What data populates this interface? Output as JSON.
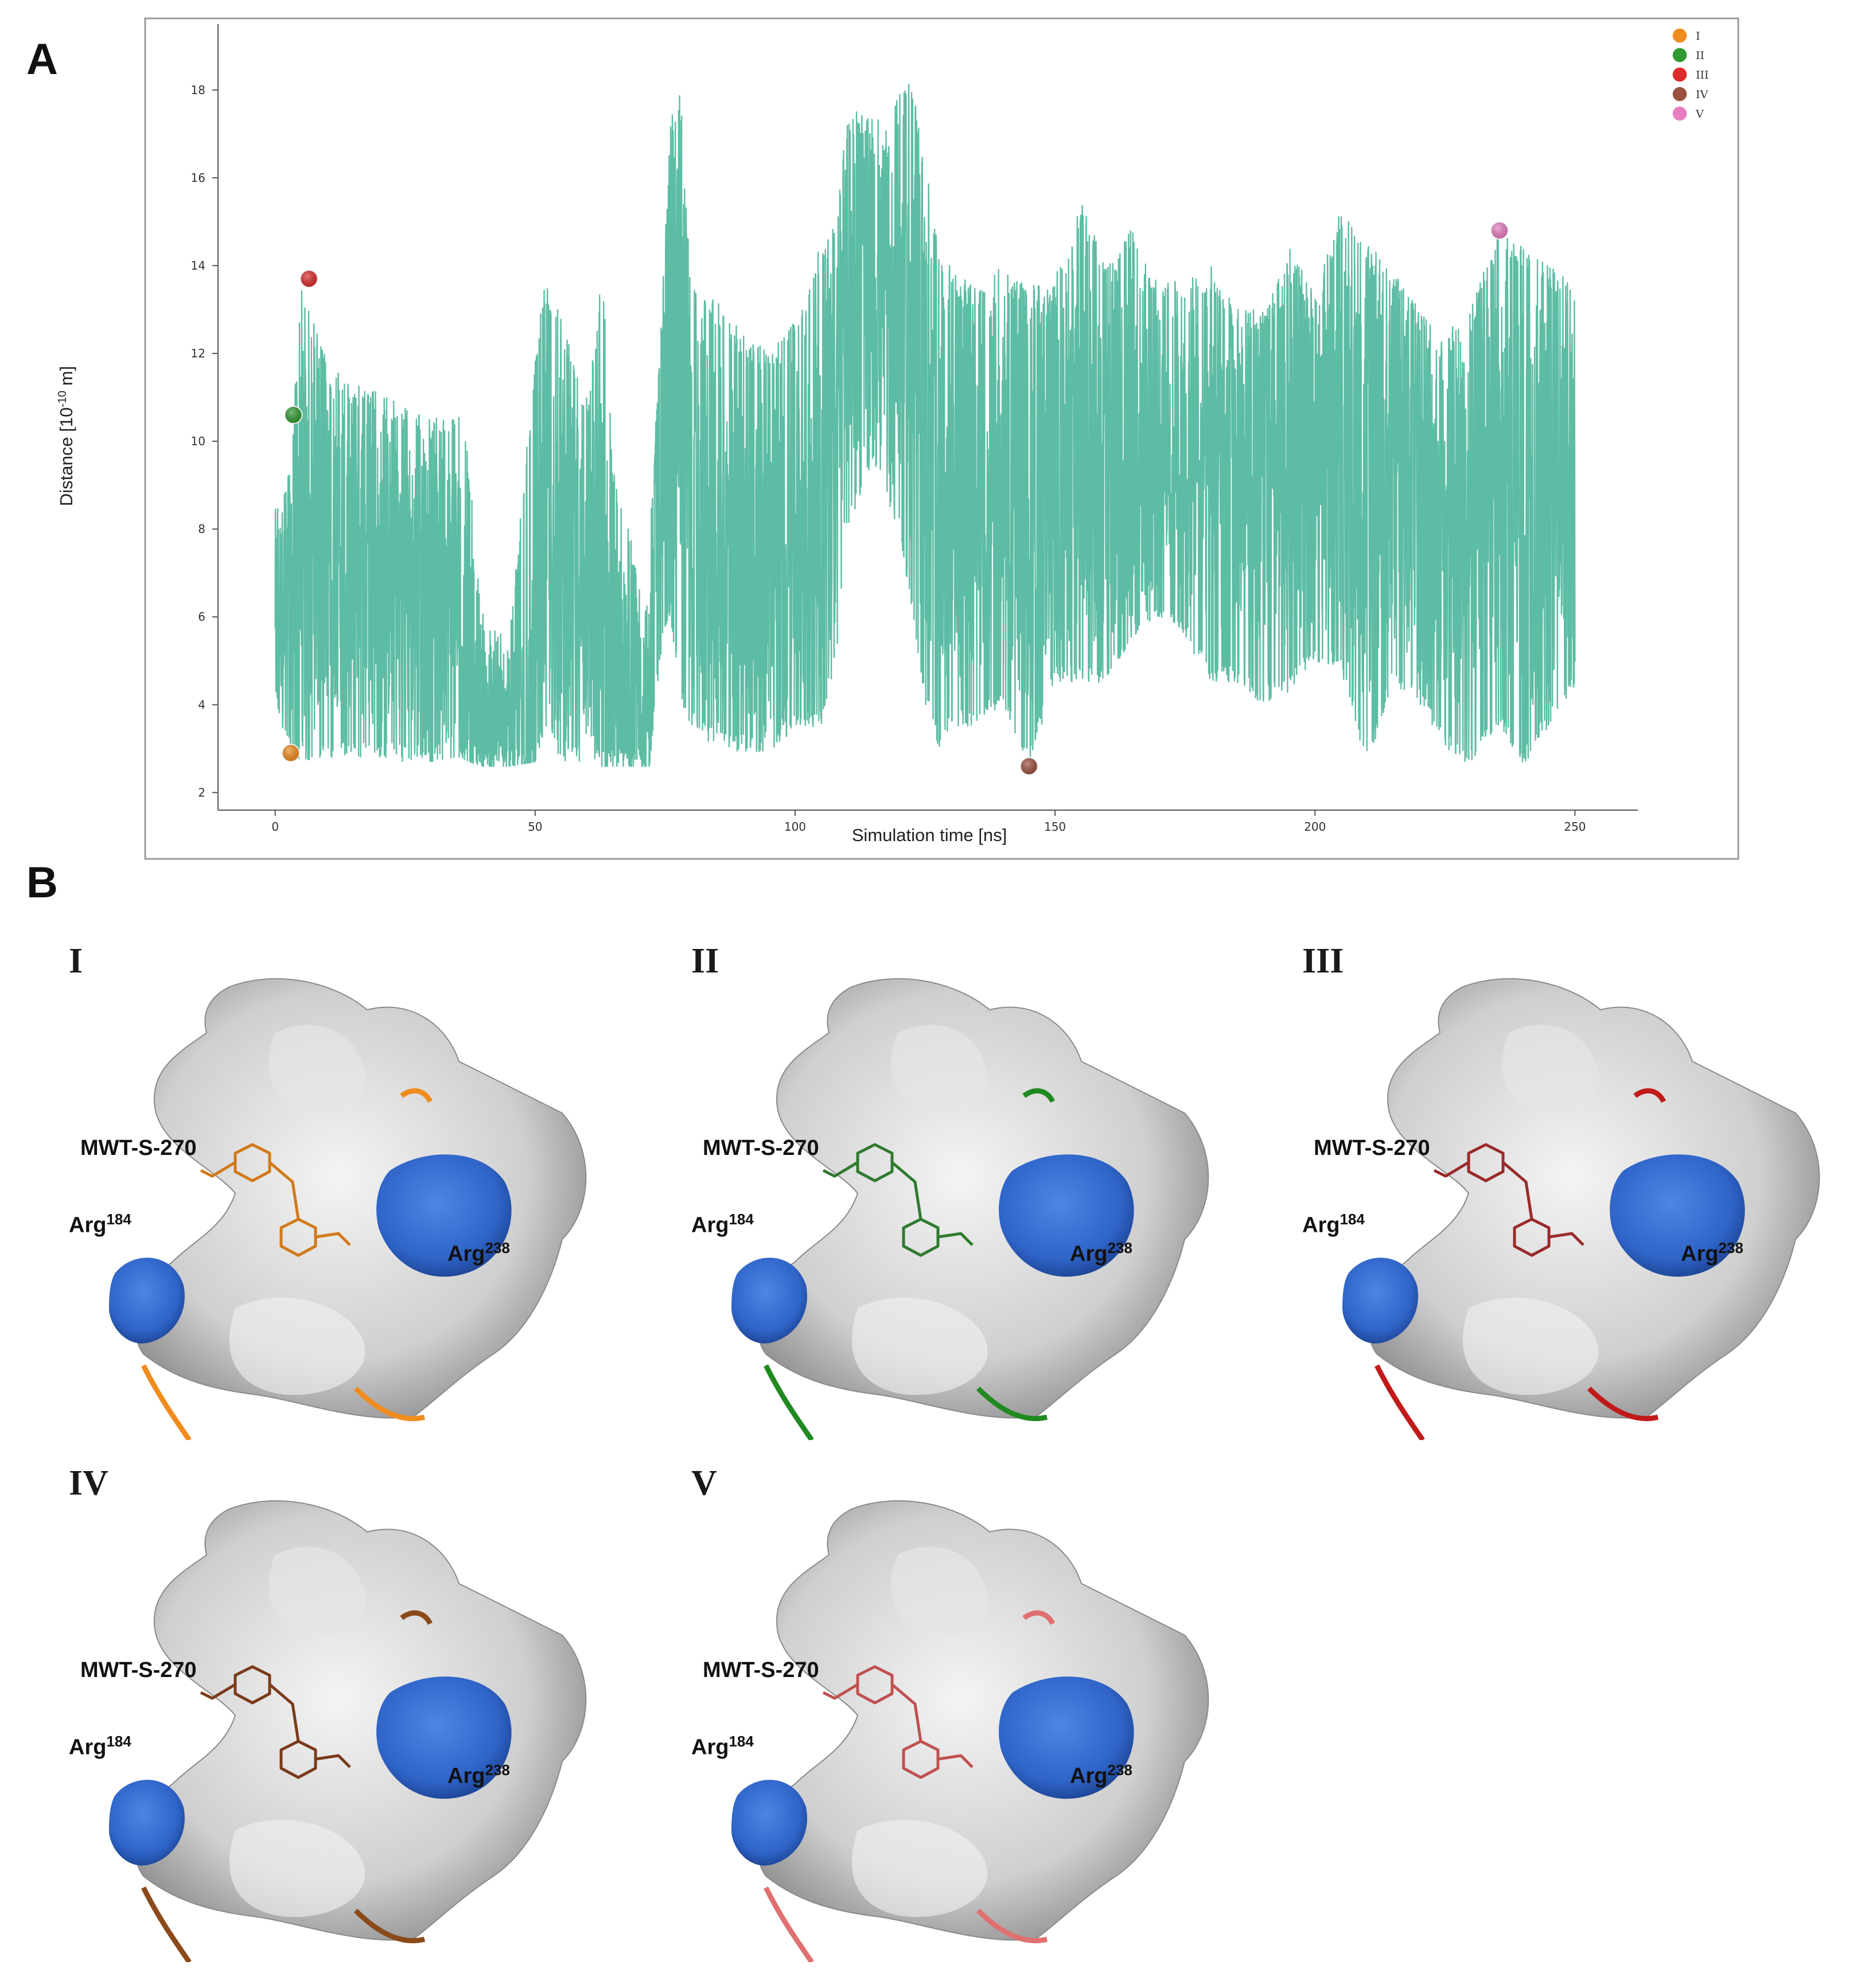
{
  "panels": {
    "a_letter": "A",
    "b_letter": "B"
  },
  "chart_data": {
    "type": "line",
    "title": "",
    "xlabel": "Simulation time [ns]",
    "ylabel_prefix": "Distance [10",
    "ylabel_exp": "-10",
    "ylabel_suffix": " m]",
    "xlim": [
      -11,
      261
    ],
    "ylim": [
      1.6,
      19.5
    ],
    "xticks": [
      0,
      50,
      100,
      150,
      200,
      250
    ],
    "yticks": [
      2,
      4,
      6,
      8,
      10,
      12,
      14,
      16,
      18
    ],
    "legend_position": "top-right",
    "color": "#5dbca4",
    "series_envelope": {
      "name": "",
      "x": [
        0,
        3,
        5,
        10,
        15,
        20,
        25,
        30,
        35,
        37,
        40,
        45,
        50,
        52,
        55,
        60,
        63,
        65,
        68,
        70,
        72,
        74,
        76,
        78,
        80,
        85,
        90,
        95,
        100,
        105,
        108,
        110,
        115,
        118,
        120,
        122,
        125,
        128,
        130,
        135,
        140,
        145,
        150,
        155,
        160,
        165,
        170,
        175,
        180,
        185,
        190,
        195,
        200,
        205,
        210,
        215,
        220,
        225,
        230,
        235,
        240,
        245,
        250
      ],
      "high": [
        8.6,
        9.5,
        13.7,
        11.8,
        11.4,
        11.1,
        10.8,
        10.5,
        10.7,
        9.8,
        6.0,
        5.5,
        12.0,
        13.7,
        12.8,
        11.0,
        14.0,
        9.5,
        8.0,
        7.0,
        8.2,
        12.0,
        17.5,
        18.0,
        13.5,
        13.2,
        12.5,
        12.0,
        12.8,
        14.5,
        15.0,
        17.5,
        17.5,
        17.0,
        18.2,
        18.5,
        16.5,
        14.0,
        14.0,
        13.5,
        14.0,
        13.5,
        13.8,
        15.5,
        14.0,
        15.0,
        13.5,
        13.8,
        14.0,
        13.0,
        13.0,
        14.5,
        13.3,
        15.3,
        14.5,
        14.0,
        13.0,
        12.5,
        13.0,
        15.0,
        14.5,
        14.0,
        13.6
      ],
      "low": [
        4.0,
        2.8,
        2.7,
        2.8,
        2.8,
        2.8,
        2.7,
        2.7,
        2.7,
        2.7,
        2.6,
        2.6,
        2.7,
        3.5,
        2.7,
        2.6,
        2.6,
        2.6,
        2.6,
        2.6,
        2.6,
        5.0,
        6.0,
        4.0,
        3.5,
        3.0,
        2.9,
        2.8,
        3.5,
        3.5,
        5.0,
        8.0,
        9.5,
        8.5,
        8.0,
        6.5,
        4.0,
        2.9,
        3.5,
        3.5,
        4.0,
        2.6,
        4.5,
        4.5,
        4.5,
        5.5,
        6.0,
        5.5,
        4.5,
        4.5,
        4.0,
        4.3,
        5.0,
        4.8,
        2.6,
        4.5,
        4.0,
        3.0,
        2.6,
        3.5,
        2.6,
        3.5,
        4.3
      ],
      "mid": [
        6.5,
        6.0,
        7.5,
        7.8,
        7.5,
        7.0,
        6.8,
        6.5,
        6.5,
        5.5,
        4.0,
        3.5,
        3.2,
        8.0,
        7.5,
        6.5,
        6.5,
        5.0,
        4.5,
        4.5,
        4.0,
        9.0,
        13.0,
        11.5,
        8.5,
        7.5,
        7.0,
        7.0,
        8.0,
        9.0,
        10.0,
        13.0,
        13.5,
        12.5,
        13.0,
        12.5,
        10.5,
        8.5,
        9.0,
        9.0,
        9.2,
        8.5,
        9.5,
        9.8,
        9.5,
        10.0,
        9.8,
        9.8,
        9.5,
        9.5,
        9.2,
        9.5,
        9.5,
        9.5,
        9.0,
        9.5,
        8.5,
        8.0,
        8.5,
        9.5,
        9.0,
        8.5,
        8.5
      ]
    },
    "highlighted_points": [
      {
        "label": "I",
        "x": 3,
        "y": 2.9,
        "color": "#f08c1e"
      },
      {
        "label": "II",
        "x": 3.5,
        "y": 10.6,
        "color": "#2f9a2f"
      },
      {
        "label": "III",
        "x": 6.5,
        "y": 13.7,
        "color": "#dd2a2a"
      },
      {
        "label": "IV",
        "x": 145,
        "y": 2.6,
        "color": "#9c5040"
      },
      {
        "label": "V",
        "x": 235.5,
        "y": 14.8,
        "color": "#e87ec0"
      }
    ]
  },
  "structures": [
    {
      "id": "I",
      "label": "I",
      "ligand": "MWT-S-270",
      "res1": "Arg",
      "res1_num": "184",
      "res2": "Arg",
      "res2_num": "238",
      "ligand_color": "#d07a1a",
      "ribbon_color": "#f08c1e"
    },
    {
      "id": "II",
      "label": "II",
      "ligand": "MWT-S-270",
      "res1": "Arg",
      "res1_num": "184",
      "res2": "Arg",
      "res2_num": "238",
      "ligand_color": "#2f7a2f",
      "ribbon_color": "#1f8a1f"
    },
    {
      "id": "III",
      "label": "III",
      "ligand": "MWT-S-270",
      "res1": "Arg",
      "res1_num": "184",
      "res2": "Arg",
      "res2_num": "238",
      "ligand_color": "#9a2a2a",
      "ribbon_color": "#c01a1a"
    },
    {
      "id": "IV",
      "label": "IV",
      "ligand": "MWT-S-270",
      "res1": "Arg",
      "res1_num": "184",
      "res2": "Arg",
      "res2_num": "238",
      "ligand_color": "#7a3a1a",
      "ribbon_color": "#8a4a1a"
    },
    {
      "id": "V",
      "label": "V",
      "ligand": "MWT-S-270",
      "res1": "Arg",
      "res1_num": "184",
      "res2": "Arg",
      "res2_num": "238",
      "ligand_color": "#c05050",
      "ribbon_color": "#e07070"
    }
  ]
}
